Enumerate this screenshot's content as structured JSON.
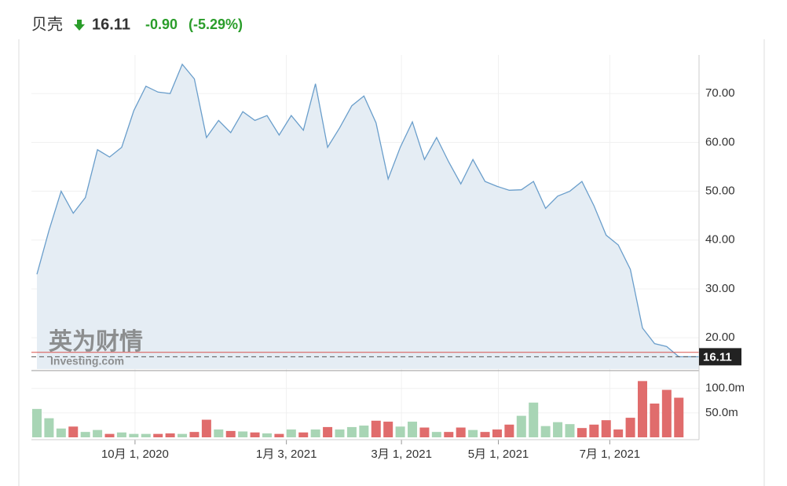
{
  "header": {
    "name": "贝壳",
    "price": "16.11",
    "change": "-0.90",
    "change_pct": "(-5.29%)"
  },
  "watermark": {
    "cn": "英为财情",
    "en": "Investing.com"
  },
  "chart_data": {
    "type": "line",
    "categories": [
      null,
      null,
      null,
      null,
      null,
      null,
      null,
      null,
      null,
      null,
      null,
      null,
      null,
      null,
      null,
      null,
      null,
      null,
      null,
      null,
      null,
      null,
      null,
      null,
      null,
      null,
      null,
      null,
      null,
      null,
      null,
      null,
      null,
      null,
      null,
      null,
      null,
      null,
      null,
      null,
      null,
      null,
      null,
      null,
      null,
      null,
      null,
      null,
      null,
      null,
      null,
      null,
      null,
      null
    ],
    "series": [
      {
        "name": "price",
        "color": "#6a9ecb",
        "values": [
          33,
          42,
          50,
          45.5,
          48.7,
          58.5,
          57,
          59,
          66.5,
          71.5,
          70.3,
          70,
          76,
          73,
          61,
          64.5,
          62,
          66.3,
          64.5,
          65.5,
          61.5,
          65.5,
          62.5,
          72,
          59,
          63,
          67.5,
          69.5,
          64,
          52.5,
          59,
          64.2,
          56.5,
          61,
          56,
          51.5,
          56.5,
          52,
          51,
          50.2,
          50.3,
          52,
          46.5,
          49,
          50,
          52,
          47,
          41,
          39,
          34,
          22,
          18.8,
          18.2,
          16.11
        ]
      },
      {
        "name": "volume",
        "axis": "y2",
        "values": [
          58,
          39,
          18,
          22,
          11,
          15,
          7,
          10,
          7,
          7,
          7,
          8,
          7,
          11,
          36,
          16,
          13,
          12,
          10,
          8,
          7,
          16,
          10,
          16,
          21,
          16,
          21,
          24,
          34,
          32,
          22,
          32,
          20,
          11,
          11,
          20,
          15,
          11,
          16,
          26,
          44,
          71,
          23,
          31,
          27,
          19,
          26,
          35,
          16,
          40,
          115,
          69,
          97,
          81
        ],
        "colors": [
          "#a8d5b5",
          "#a8d5b5",
          "#a8d5b5",
          "#e06c6c",
          "#a8d5b5",
          "#a8d5b5",
          "#e06c6c",
          "#a8d5b5",
          "#a8d5b5",
          "#a8d5b5",
          "#e06c6c",
          "#e06c6c",
          "#a8d5b5",
          "#e06c6c",
          "#e06c6c",
          "#a8d5b5",
          "#e06c6c",
          "#a8d5b5",
          "#e06c6c",
          "#a8d5b5",
          "#e06c6c",
          "#a8d5b5",
          "#e06c6c",
          "#a8d5b5",
          "#e06c6c",
          "#a8d5b5",
          "#a8d5b5",
          "#a8d5b5",
          "#e06c6c",
          "#e06c6c",
          "#a8d5b5",
          "#a8d5b5",
          "#e06c6c",
          "#a8d5b5",
          "#e06c6c",
          "#e06c6c",
          "#a8d5b5",
          "#e06c6c",
          "#e06c6c",
          "#e06c6c",
          "#a8d5b5",
          "#a8d5b5",
          "#a8d5b5",
          "#a8d5b5",
          "#a8d5b5",
          "#e06c6c",
          "#e06c6c",
          "#e06c6c",
          "#e06c6c",
          "#e06c6c",
          "#e06c6c",
          "#e06c6c",
          "#e06c6c",
          "#e06c6c"
        ]
      }
    ],
    "reference_line": 17.01,
    "ylim": [
      13.6,
      77.9
    ],
    "yticks": [
      {
        "value": 20,
        "label": "20.00"
      },
      {
        "value": 30,
        "label": "30.00"
      },
      {
        "value": 40,
        "label": "40.00"
      },
      {
        "value": 50,
        "label": "50.00"
      },
      {
        "value": 60,
        "label": "60.00"
      },
      {
        "value": 70,
        "label": "70.00"
      }
    ],
    "y2lim": [
      0,
      130
    ],
    "y2ticks": [
      {
        "value": 50,
        "label": "50.0m"
      },
      {
        "value": 100,
        "label": "100.0m"
      }
    ],
    "xticks": [
      {
        "value": 8.1,
        "label": "10月 1, 2020"
      },
      {
        "value": 20.6,
        "label": "1月 3, 2021"
      },
      {
        "value": 30.1,
        "label": "3月 1, 2021"
      },
      {
        "value": 38.1,
        "label": "5月 1, 2021"
      },
      {
        "value": 47.3,
        "label": "7月 1, 2021"
      }
    ],
    "grid": true
  }
}
